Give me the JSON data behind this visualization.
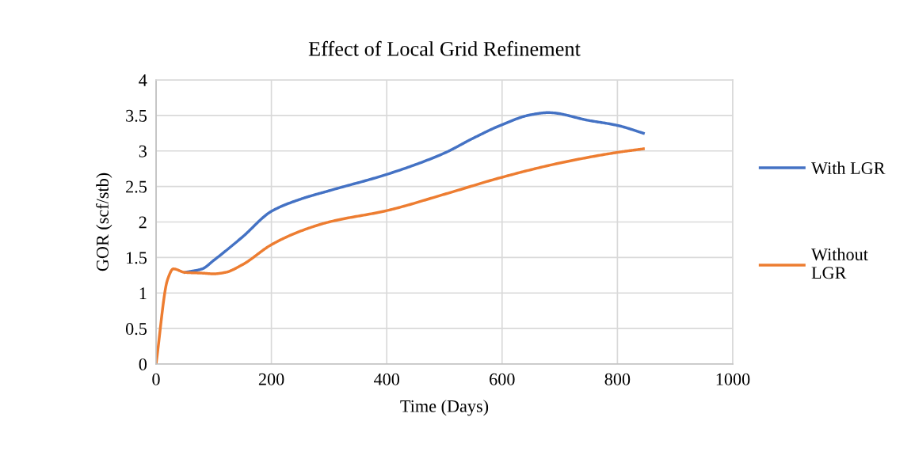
{
  "chart_data": {
    "type": "line",
    "title": "Effect of Local Grid Refinement",
    "xlabel": "Time (Days)",
    "ylabel": "GOR (scf/stb)",
    "xlim": [
      0,
      1000
    ],
    "xticks": [
      0,
      200,
      400,
      600,
      800,
      1000
    ],
    "ylim": [
      0,
      4
    ],
    "yticks": [
      0,
      0.5,
      1,
      1.5,
      2,
      2.5,
      3,
      3.5,
      4
    ],
    "grid": true,
    "legend": "right",
    "marker": "none",
    "line_style": "solid",
    "series": [
      {
        "name": "With LGR",
        "color": "#4472c4",
        "x": [
          50,
          80,
          100,
          150,
          200,
          250,
          300,
          400,
          500,
          550,
          600,
          650,
          680,
          750,
          800,
          845
        ],
        "values": [
          1.29,
          1.34,
          1.46,
          1.79,
          2.15,
          2.32,
          2.44,
          2.67,
          2.97,
          3.18,
          3.37,
          3.51,
          3.54,
          3.43,
          3.36,
          3.25
        ]
      },
      {
        "name": "Without LGR",
        "color": "#ed7d31",
        "x": [
          0,
          20,
          30,
          50,
          80,
          100,
          120,
          150,
          200,
          250,
          300,
          400,
          500,
          600,
          700,
          800,
          845
        ],
        "values": [
          0,
          1.19,
          1.34,
          1.29,
          1.28,
          1.27,
          1.29,
          1.4,
          1.68,
          1.87,
          2.0,
          2.16,
          2.39,
          2.63,
          2.83,
          2.98,
          3.03
        ]
      }
    ]
  }
}
